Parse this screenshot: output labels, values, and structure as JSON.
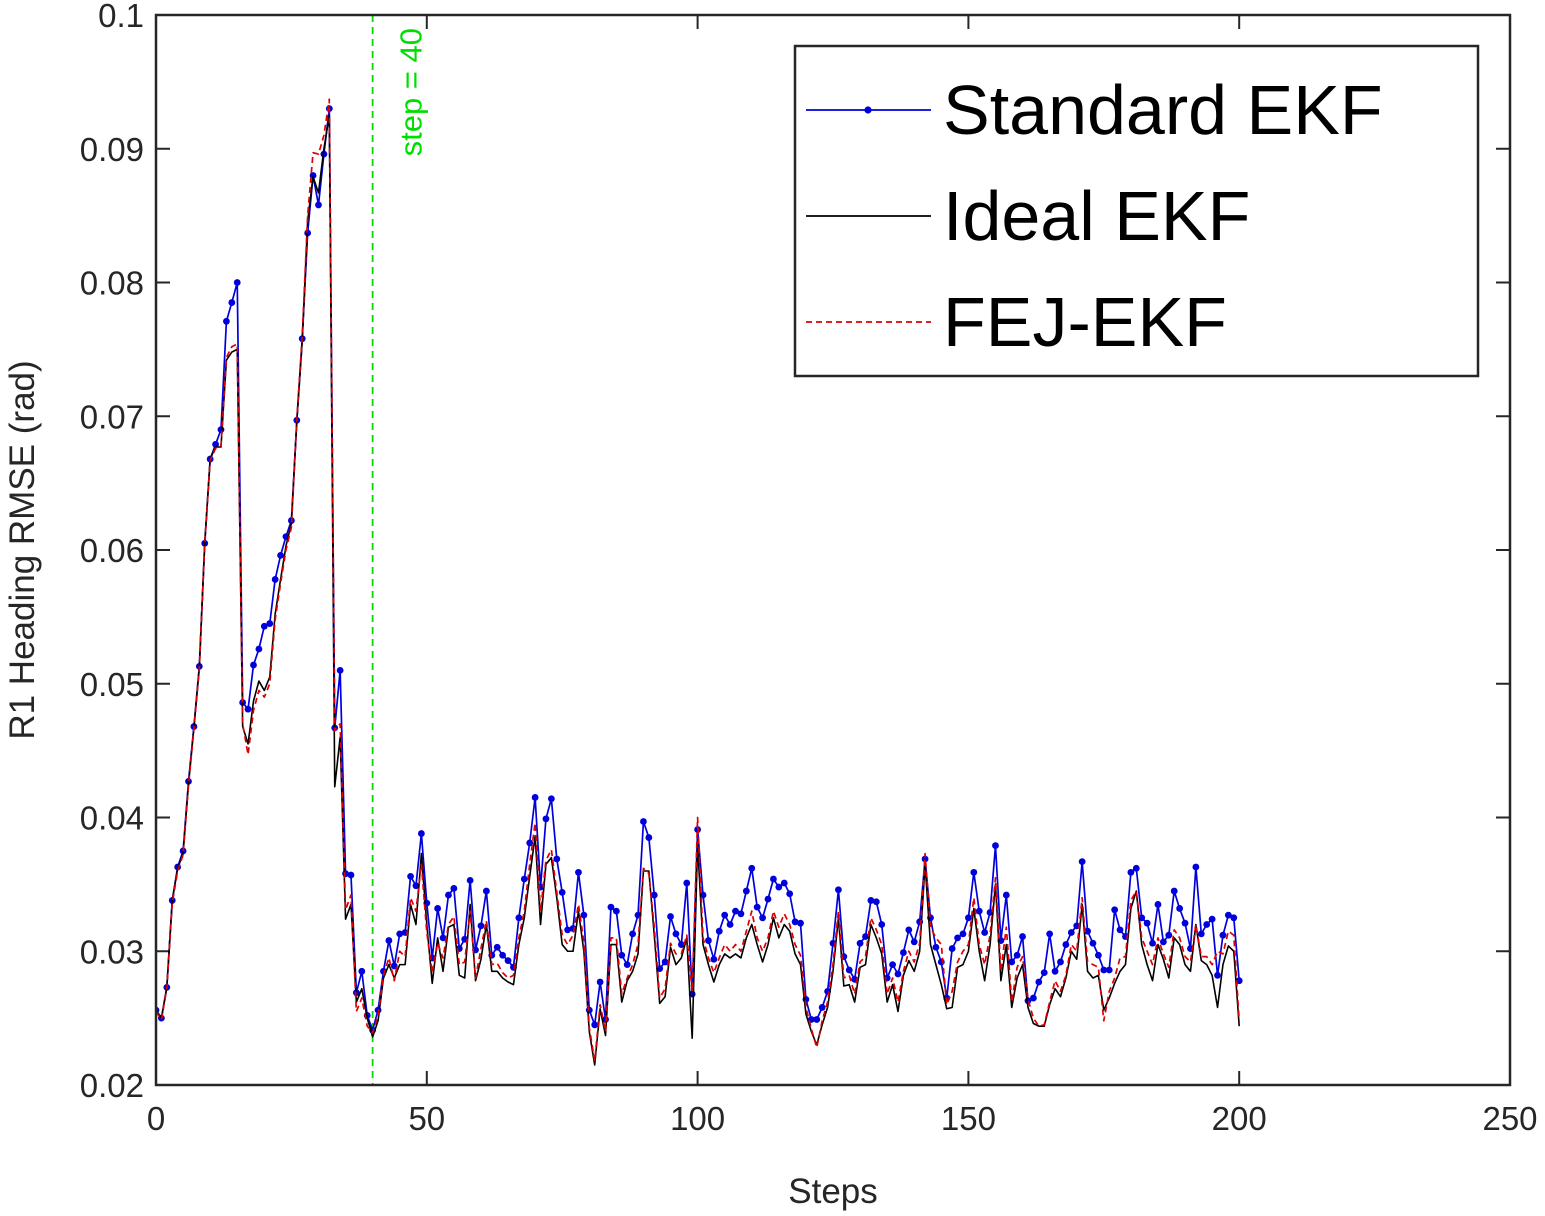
{
  "chart_data": {
    "type": "line",
    "title": "",
    "xlabel": "Steps",
    "ylabel": "R1 Heading RMSE (rad)",
    "xlim": [
      0,
      250
    ],
    "ylim": [
      0.02,
      0.1
    ],
    "x_ticks": [
      0,
      50,
      100,
      150,
      200,
      250
    ],
    "x_tick_labels": [
      "0",
      "50",
      "100",
      "150",
      "200",
      "250"
    ],
    "y_ticks": [
      0.02,
      0.03,
      0.04,
      0.05,
      0.06,
      0.07,
      0.08,
      0.09,
      0.1
    ],
    "y_tick_labels": [
      "0.02",
      "0.03",
      "0.04",
      "0.05",
      "0.06",
      "0.07",
      "0.08",
      "0.09",
      "0.1"
    ],
    "grid": false,
    "legend_position": "top-right",
    "annotation": {
      "text": "step = 40",
      "x": 40,
      "color": "#00dd00"
    },
    "series": [
      {
        "name": "Standard EKF",
        "color": "#0000dd",
        "style": "solid-dots",
        "x_start": 0,
        "values": [
          0.0256,
          0.025,
          0.0273,
          0.0338,
          0.0363,
          0.0375,
          0.0427,
          0.0468,
          0.0513,
          0.0605,
          0.0668,
          0.0679,
          0.069,
          0.0771,
          0.0785,
          0.08,
          0.0486,
          0.0481,
          0.0514,
          0.0526,
          0.0543,
          0.0545,
          0.0578,
          0.0596,
          0.061,
          0.0622,
          0.0697,
          0.0758,
          0.0837,
          0.088,
          0.0858,
          0.0896,
          0.093,
          0.0467,
          0.051,
          0.0358,
          0.0357,
          0.0269,
          0.0285,
          0.0252,
          0.0241,
          0.0256,
          0.0285,
          0.0308,
          0.0289,
          0.0313,
          0.0314,
          0.0356,
          0.0349,
          0.0388,
          0.0336,
          0.0295,
          0.0332,
          0.031,
          0.0342,
          0.0347,
          0.0302,
          0.0309,
          0.0353,
          0.0301,
          0.0319,
          0.0345,
          0.0297,
          0.0303,
          0.0297,
          0.0293,
          0.0288,
          0.0325,
          0.0354,
          0.0381,
          0.0415,
          0.0348,
          0.0399,
          0.0414,
          0.0369,
          0.0344,
          0.0316,
          0.0317,
          0.0359,
          0.0327,
          0.0256,
          0.0245,
          0.0277,
          0.0249,
          0.0333,
          0.033,
          0.0297,
          0.029,
          0.0313,
          0.0327,
          0.0397,
          0.0385,
          0.0342,
          0.0287,
          0.0292,
          0.0326,
          0.0313,
          0.0305,
          0.0351,
          0.0268,
          0.0391,
          0.0342,
          0.0308,
          0.0294,
          0.0315,
          0.0327,
          0.032,
          0.033,
          0.0328,
          0.0345,
          0.0362,
          0.0333,
          0.0325,
          0.0339,
          0.0354,
          0.0348,
          0.0351,
          0.0343,
          0.0322,
          0.0321,
          0.0264,
          0.0249,
          0.0249,
          0.0258,
          0.027,
          0.0306,
          0.0346,
          0.0296,
          0.0286,
          0.0279,
          0.0306,
          0.0311,
          0.0338,
          0.0337,
          0.032,
          0.028,
          0.029,
          0.0283,
          0.0299,
          0.0316,
          0.0307,
          0.0322,
          0.0369,
          0.0325,
          0.0303,
          0.0292,
          0.0265,
          0.0302,
          0.031,
          0.0313,
          0.0325,
          0.0359,
          0.033,
          0.0314,
          0.0329,
          0.0379,
          0.0308,
          0.0342,
          0.0292,
          0.0297,
          0.0311,
          0.0263,
          0.0265,
          0.0277,
          0.0284,
          0.0313,
          0.0285,
          0.0292,
          0.0305,
          0.0314,
          0.0319,
          0.0367,
          0.0315,
          0.0306,
          0.0297,
          0.0286,
          0.0286,
          0.0331,
          0.0316,
          0.0311,
          0.0359,
          0.0362,
          0.0325,
          0.0321,
          0.0306,
          0.0335,
          0.0307,
          0.0312,
          0.0345,
          0.0332,
          0.0321,
          0.0302,
          0.0363,
          0.0313,
          0.032,
          0.0324,
          0.0282,
          0.0312,
          0.0327,
          0.0325,
          0.0278
        ]
      },
      {
        "name": "Ideal EKF",
        "color": "#000000",
        "style": "solid",
        "x_start": 0,
        "values": [
          0.0256,
          0.025,
          0.0273,
          0.0338,
          0.0362,
          0.0373,
          0.0425,
          0.0467,
          0.0512,
          0.0605,
          0.0668,
          0.0677,
          0.0677,
          0.0742,
          0.0748,
          0.075,
          0.0468,
          0.0455,
          0.0487,
          0.0502,
          0.0495,
          0.0505,
          0.0552,
          0.0578,
          0.0603,
          0.062,
          0.0696,
          0.0756,
          0.0846,
          0.0879,
          0.0867,
          0.09,
          0.0925,
          0.0423,
          0.046,
          0.0324,
          0.0335,
          0.0262,
          0.0272,
          0.025,
          0.0236,
          0.0248,
          0.028,
          0.029,
          0.028,
          0.029,
          0.029,
          0.0335,
          0.032,
          0.0373,
          0.032,
          0.0276,
          0.031,
          0.0285,
          0.0318,
          0.032,
          0.0282,
          0.028,
          0.0335,
          0.0278,
          0.0294,
          0.032,
          0.0285,
          0.0285,
          0.028,
          0.0277,
          0.0275,
          0.0305,
          0.0325,
          0.0356,
          0.0386,
          0.032,
          0.0365,
          0.037,
          0.034,
          0.0305,
          0.03,
          0.03,
          0.033,
          0.03,
          0.024,
          0.0215,
          0.0257,
          0.0237,
          0.0305,
          0.0305,
          0.0262,
          0.0278,
          0.0285,
          0.0298,
          0.036,
          0.036,
          0.0312,
          0.0261,
          0.0266,
          0.0303,
          0.029,
          0.0295,
          0.031,
          0.0235,
          0.038,
          0.0305,
          0.029,
          0.0277,
          0.029,
          0.0298,
          0.0295,
          0.0298,
          0.0295,
          0.031,
          0.032,
          0.0305,
          0.0292,
          0.0305,
          0.0325,
          0.031,
          0.032,
          0.0315,
          0.0298,
          0.029,
          0.0253,
          0.024,
          0.023,
          0.0245,
          0.0258,
          0.0285,
          0.0325,
          0.0274,
          0.0275,
          0.0262,
          0.0288,
          0.029,
          0.032,
          0.031,
          0.0298,
          0.0262,
          0.0275,
          0.0255,
          0.0282,
          0.0293,
          0.0285,
          0.03,
          0.0365,
          0.0305,
          0.029,
          0.0275,
          0.0257,
          0.0258,
          0.0288,
          0.029,
          0.03,
          0.0332,
          0.03,
          0.0278,
          0.0305,
          0.035,
          0.0278,
          0.0305,
          0.0258,
          0.028,
          0.029,
          0.0258,
          0.0246,
          0.0244,
          0.0244,
          0.026,
          0.0272,
          0.0266,
          0.028,
          0.03,
          0.0294,
          0.0335,
          0.0285,
          0.028,
          0.0282,
          0.0256,
          0.0265,
          0.0276,
          0.0285,
          0.029,
          0.0332,
          0.0345,
          0.0305,
          0.029,
          0.0278,
          0.0305,
          0.0294,
          0.028,
          0.031,
          0.0305,
          0.029,
          0.0285,
          0.032,
          0.0293,
          0.029,
          0.0282,
          0.0258,
          0.029,
          0.0304,
          0.03,
          0.0244
        ]
      },
      {
        "name": "FEJ-EKF",
        "color": "#dd0000",
        "style": "dashed",
        "x_start": 0,
        "values": [
          0.0255,
          0.0249,
          0.0272,
          0.0336,
          0.036,
          0.0372,
          0.0424,
          0.0466,
          0.0511,
          0.0604,
          0.0667,
          0.0676,
          0.0678,
          0.0744,
          0.0752,
          0.0754,
          0.047,
          0.0447,
          0.048,
          0.0495,
          0.049,
          0.05,
          0.0548,
          0.0575,
          0.06,
          0.0617,
          0.0698,
          0.076,
          0.085,
          0.0897,
          0.0896,
          0.091,
          0.0937,
          0.0465,
          0.047,
          0.0331,
          0.0342,
          0.0255,
          0.0265,
          0.0244,
          0.0239,
          0.0252,
          0.0282,
          0.0295,
          0.0278,
          0.03,
          0.0296,
          0.034,
          0.033,
          0.0365,
          0.0314,
          0.0284,
          0.0306,
          0.0295,
          0.032,
          0.0326,
          0.029,
          0.0292,
          0.033,
          0.028,
          0.0302,
          0.0323,
          0.029,
          0.0291,
          0.0284,
          0.028,
          0.0282,
          0.031,
          0.033,
          0.0365,
          0.0396,
          0.033,
          0.0368,
          0.0376,
          0.0344,
          0.0312,
          0.0305,
          0.0312,
          0.0335,
          0.0307,
          0.0243,
          0.0218,
          0.026,
          0.024,
          0.031,
          0.031,
          0.0268,
          0.028,
          0.029,
          0.0305,
          0.0362,
          0.0358,
          0.0318,
          0.0265,
          0.0272,
          0.0306,
          0.0298,
          0.0298,
          0.0312,
          0.027,
          0.04,
          0.031,
          0.0295,
          0.0284,
          0.0295,
          0.0305,
          0.03,
          0.0305,
          0.03,
          0.0315,
          0.033,
          0.031,
          0.03,
          0.031,
          0.033,
          0.0318,
          0.0328,
          0.032,
          0.0305,
          0.0297,
          0.0258,
          0.0242,
          0.0228,
          0.0248,
          0.0262,
          0.029,
          0.033,
          0.028,
          0.0282,
          0.0268,
          0.0292,
          0.0296,
          0.0325,
          0.0316,
          0.0305,
          0.0268,
          0.028,
          0.0262,
          0.0285,
          0.03,
          0.0292,
          0.0306,
          0.0373,
          0.0318,
          0.031,
          0.0305,
          0.026,
          0.027,
          0.0292,
          0.03,
          0.0305,
          0.034,
          0.0305,
          0.029,
          0.0312,
          0.0355,
          0.0285,
          0.0318,
          0.0262,
          0.0288,
          0.0296,
          0.0264,
          0.025,
          0.0244,
          0.0245,
          0.0262,
          0.0278,
          0.027,
          0.0282,
          0.0305,
          0.03,
          0.034,
          0.0292,
          0.029,
          0.0288,
          0.0248,
          0.027,
          0.028,
          0.0295,
          0.0296,
          0.0338,
          0.0345,
          0.031,
          0.03,
          0.029,
          0.031,
          0.0298,
          0.0288,
          0.0316,
          0.031,
          0.0296,
          0.0292,
          0.032,
          0.0296,
          0.0296,
          0.029,
          0.03,
          0.0298,
          0.0315,
          0.0312,
          0.0248
        ]
      }
    ]
  }
}
